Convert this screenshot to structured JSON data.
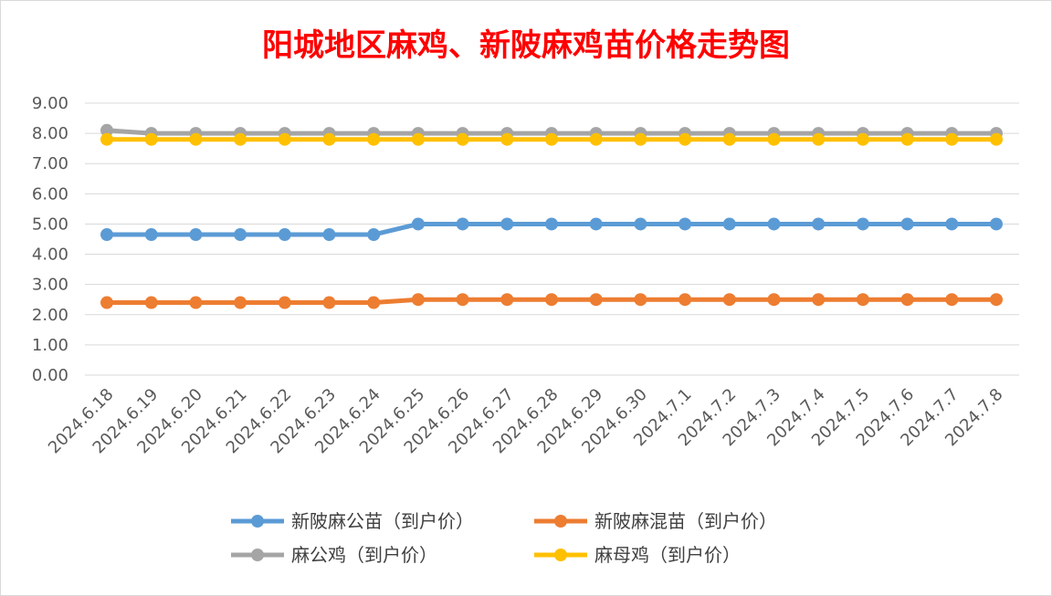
{
  "chart_data": {
    "type": "line",
    "title": "阳城地区麻鸡、新陂麻鸡苗价格走势图",
    "xlabel": "",
    "ylabel": "",
    "ylim": [
      0,
      9
    ],
    "yticks": [
      "0.00",
      "1.00",
      "2.00",
      "3.00",
      "4.00",
      "5.00",
      "6.00",
      "7.00",
      "8.00",
      "9.00"
    ],
    "grid": true,
    "legend_position": "bottom",
    "categories": [
      "2024.6.18",
      "2024.6.19",
      "2024.6.20",
      "2024.6.21",
      "2024.6.22",
      "2024.6.23",
      "2024.6.24",
      "2024.6.25",
      "2024.6.26",
      "2024.6.27",
      "2024.6.28",
      "2024.6.29",
      "2024.6.30",
      "2024.7.1",
      "2024.7.2",
      "2024.7.3",
      "2024.7.4",
      "2024.7.5",
      "2024.7.6",
      "2024.7.7",
      "2024.7.8"
    ],
    "series": [
      {
        "name": "新陂麻公苗（到户价）",
        "color": "#5b9bd5",
        "values": [
          4.65,
          4.65,
          4.65,
          4.65,
          4.65,
          4.65,
          4.65,
          5.0,
          5.0,
          5.0,
          5.0,
          5.0,
          5.0,
          5.0,
          5.0,
          5.0,
          5.0,
          5.0,
          5.0,
          5.0,
          5.0
        ]
      },
      {
        "name": "新陂麻混苗（到户价）",
        "color": "#ed7d31",
        "values": [
          2.4,
          2.4,
          2.4,
          2.4,
          2.4,
          2.4,
          2.4,
          2.5,
          2.5,
          2.5,
          2.5,
          2.5,
          2.5,
          2.5,
          2.5,
          2.5,
          2.5,
          2.5,
          2.5,
          2.5,
          2.5
        ]
      },
      {
        "name": "麻公鸡（到户价）",
        "color": "#a5a5a5",
        "values": [
          8.1,
          8.0,
          8.0,
          8.0,
          8.0,
          8.0,
          8.0,
          8.0,
          8.0,
          8.0,
          8.0,
          8.0,
          8.0,
          8.0,
          8.0,
          8.0,
          8.0,
          8.0,
          8.0,
          8.0,
          8.0
        ]
      },
      {
        "name": "麻母鸡（到户价）",
        "color": "#ffc000",
        "values": [
          7.8,
          7.8,
          7.8,
          7.8,
          7.8,
          7.8,
          7.8,
          7.8,
          7.8,
          7.8,
          7.8,
          7.8,
          7.8,
          7.8,
          7.8,
          7.8,
          7.8,
          7.8,
          7.8,
          7.8,
          7.8
        ]
      }
    ]
  }
}
